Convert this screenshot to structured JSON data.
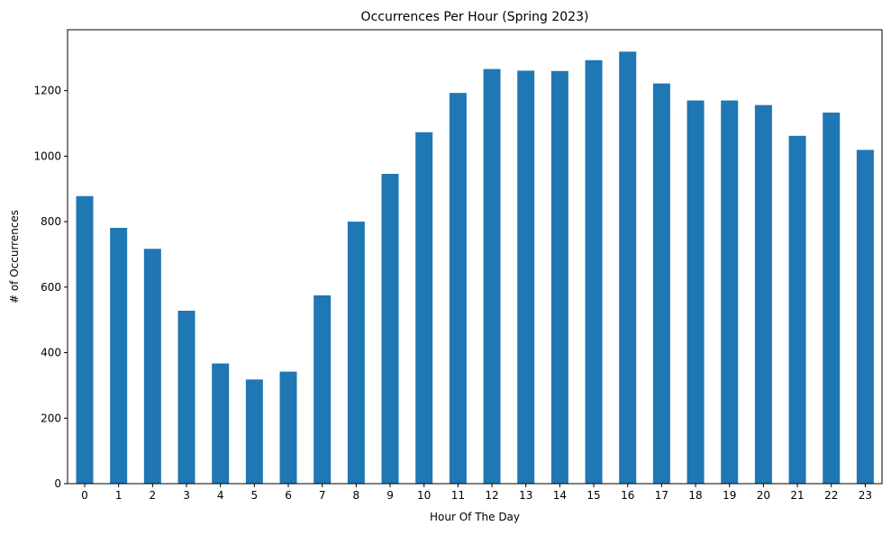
{
  "chart_data": {
    "type": "bar",
    "title": "Occurrences Per Hour (Spring 2023)",
    "xlabel": "Hour Of The Day",
    "ylabel": "# of Occurrences",
    "categories": [
      "0",
      "1",
      "2",
      "3",
      "4",
      "5",
      "6",
      "7",
      "8",
      "9",
      "10",
      "11",
      "12",
      "13",
      "14",
      "15",
      "16",
      "17",
      "18",
      "19",
      "20",
      "21",
      "22",
      "23"
    ],
    "values": [
      878,
      781,
      717,
      528,
      367,
      318,
      342,
      575,
      800,
      946,
      1073,
      1193,
      1266,
      1261,
      1260,
      1293,
      1319,
      1222,
      1170,
      1170,
      1156,
      1062,
      1133,
      1019
    ],
    "ylim": [
      0,
      1386
    ],
    "yticks": [
      0,
      200,
      400,
      600,
      800,
      1000,
      1200
    ],
    "grid": false,
    "legend": "none",
    "bar_color": "#1f77b4"
  }
}
